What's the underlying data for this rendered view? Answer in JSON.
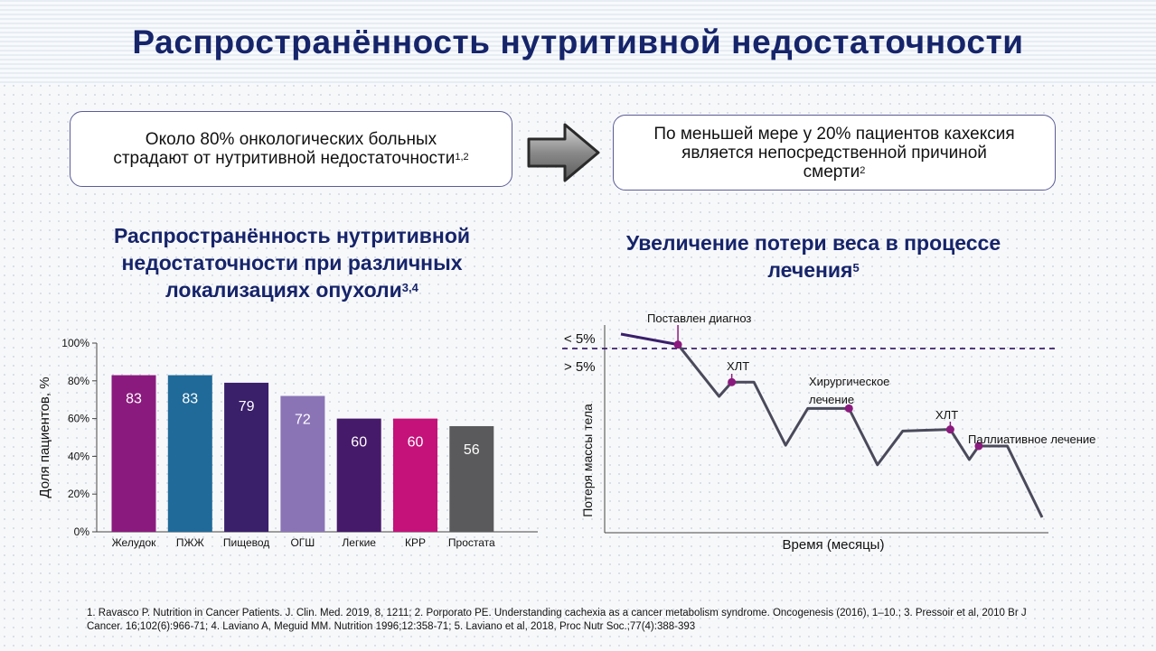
{
  "title": "Распространённость нутритивной недостаточности",
  "callout_left": {
    "line1": "Около 80% онкологических больных",
    "line2": "страдают от нутритивной недостаточности",
    "sup": "1,2"
  },
  "callout_right": {
    "line1": "По меньшей мере у 20% пациентов кахексия",
    "line2": "является непосредственной причиной",
    "line3": "смерти",
    "sup": "2"
  },
  "subtitle_left": {
    "line1": "Распространённость нутритивной",
    "line2": "недостаточности при различных",
    "line3": "локализациях опухоли",
    "sup": "3,4"
  },
  "subtitle_right": {
    "line1": "Увеличение потери веса в процессе",
    "line2": "лечения",
    "sup": "5"
  },
  "chart_data": [
    {
      "type": "bar",
      "categories": [
        "Желудок",
        "ПЖЖ",
        "Пищевод",
        "ОГШ",
        "Легкие",
        "КРР",
        "Простата"
      ],
      "values": [
        83,
        83,
        79,
        72,
        60,
        60,
        56
      ],
      "colors": [
        "#8b1a7e",
        "#1f6a99",
        "#3a1f6b",
        "#8a74b6",
        "#461a6a",
        "#c4127a",
        "#5a5a5c"
      ],
      "ylabel": "Доля пациентов, %",
      "yticks": [
        "0%",
        "20%",
        "40%",
        "60%",
        "80%",
        "100%"
      ],
      "ylim": [
        0,
        100
      ],
      "data_labels": true
    },
    {
      "type": "line",
      "xlabel": "Время (месяцы)",
      "ylabel": "Потеря массы тела",
      "threshold_labels": [
        "< 5%",
        "> 5%"
      ],
      "threshold_style": "dashed",
      "x": [
        0,
        1.8,
        3.1,
        3.5,
        4.2,
        5.2,
        5.9,
        7.2,
        8.1,
        8.9,
        10.4,
        11.0,
        11.3,
        12.2,
        13.3
      ],
      "y": [
        0.5,
        1.9,
        8.8,
        6.9,
        6.9,
        15.3,
        10.4,
        10.4,
        17.9,
        13.4,
        13.2,
        17.2,
        15.4,
        15.4,
        24.9
      ],
      "annotations": [
        {
          "label": "Поставлен диагноз",
          "point_index": 1
        },
        {
          "label": "ХЛТ",
          "point_index": 3
        },
        {
          "label": "Хирургическое лечение",
          "line1": "Хирургическое",
          "line2": "лечение",
          "point_index": 7
        },
        {
          "label": "ХЛТ",
          "point_index": 10
        },
        {
          "label": "Паллиативное лечение",
          "point_index": 12
        }
      ],
      "line_color": "#4a4a5c",
      "marker_color": "#8b1a7e"
    }
  ],
  "references": {
    "line1": "1. Ravasco P. Nutrition in Cancer Patients. J. Clin. Med. 2019, 8, 1211; 2. Porporato PE. Understanding cachexia as a cancer metabolism syndrome. Oncogenesis (2016), 1–10.; 3. Pressoir et al, 2010 Br J",
    "line2": "Cancer. 16;102(6):966-71; 4. Laviano A, Meguid MM. Nutrition 1996;12:358-71; 5. Laviano et al, 2018, Proc Nutr Soc.;77(4):388-393"
  }
}
